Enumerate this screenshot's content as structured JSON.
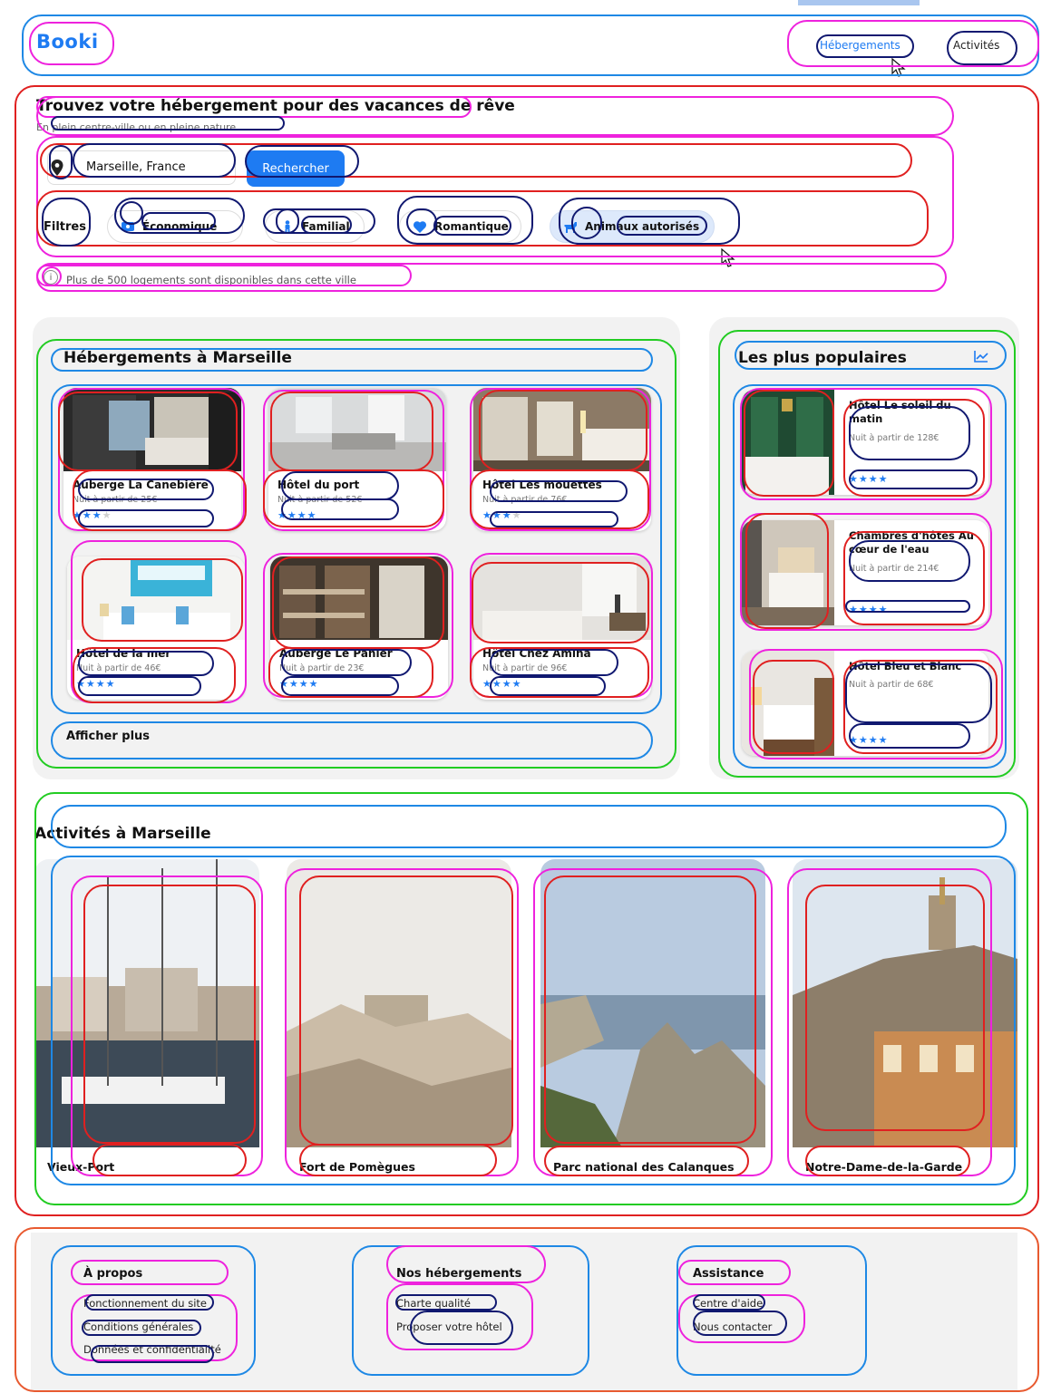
{
  "header": {
    "logo": "Booki",
    "nav": [
      "Hébergements",
      "Activités"
    ]
  },
  "hero": {
    "title": "Trouvez votre hébergement pour des vacances de rêve",
    "subtitle": "En plein centre-ville ou en pleine nature",
    "search_value": "Marseille, France",
    "search_button": "Rechercher"
  },
  "filters": {
    "label": "Filtres",
    "chips": [
      {
        "label": "Économique",
        "icon": "money-icon"
      },
      {
        "label": "Familial",
        "icon": "child-icon"
      },
      {
        "label": "Romantique",
        "icon": "heart-icon"
      },
      {
        "label": "Animaux autorisés",
        "icon": "dog-icon"
      }
    ],
    "selected_chip": "Animaux autorisés"
  },
  "info_text": "Plus de 500 logements sont disponibles dans cette ville",
  "accommodations": {
    "title": "Hébergements à Marseille",
    "cards": [
      {
        "name": "Auberge La Canebière",
        "price": "Nuit à partir de 25€",
        "rating": 3
      },
      {
        "name": "Hôtel du port",
        "price": "Nuit à partir de 52€",
        "rating": 4
      },
      {
        "name": "Hôtel Les mouettes",
        "price": "Nuit à partir de 76€",
        "rating": 3
      },
      {
        "name": "Hôtel de la mer",
        "price": "Nuit à partir de 46€",
        "rating": 4
      },
      {
        "name": "Auberge Le Panier",
        "price": "Nuit à partir de 23€",
        "rating": 4
      },
      {
        "name": "Hôtel Chez Amina",
        "price": "Nuit à partir de 96€",
        "rating": 4
      }
    ],
    "more_button": "Afficher plus"
  },
  "popular": {
    "title": "Les plus populaires",
    "icon": "chart-icon",
    "cards": [
      {
        "name": "Hôtel Le soleil du matin",
        "price": "Nuit à partir de 128€",
        "rating": 4
      },
      {
        "name": "Chambres d'hôtes Au cœur de l'eau",
        "price": "Nuit à partir de 214€",
        "rating": 4
      },
      {
        "name": "Hôtel Bleu et Blanc",
        "price": "Nuit à partir de 68€",
        "rating": 4
      }
    ]
  },
  "activities": {
    "title": "Activités à Marseille",
    "cards": [
      "Vieux-Port",
      "Fort de Pomègues",
      "Parc national des Calanques",
      "Notre-Dame-de-la-Garde"
    ]
  },
  "footer": {
    "columns": [
      {
        "title": "À propos",
        "links": [
          "Fonctionnement du site",
          "Conditions générales",
          "Données et confidentialité"
        ]
      },
      {
        "title": "Nos hébergements",
        "links": [
          "Charte qualité",
          "Proposer votre hôtel"
        ]
      },
      {
        "title": "Assistance",
        "links": [
          "Centre d'aide",
          "Nous contacter"
        ]
      }
    ]
  },
  "colors": {
    "accent": "#1e7bf2",
    "panel": "#f2f2f2",
    "chip_selected": "#dde9fb"
  }
}
